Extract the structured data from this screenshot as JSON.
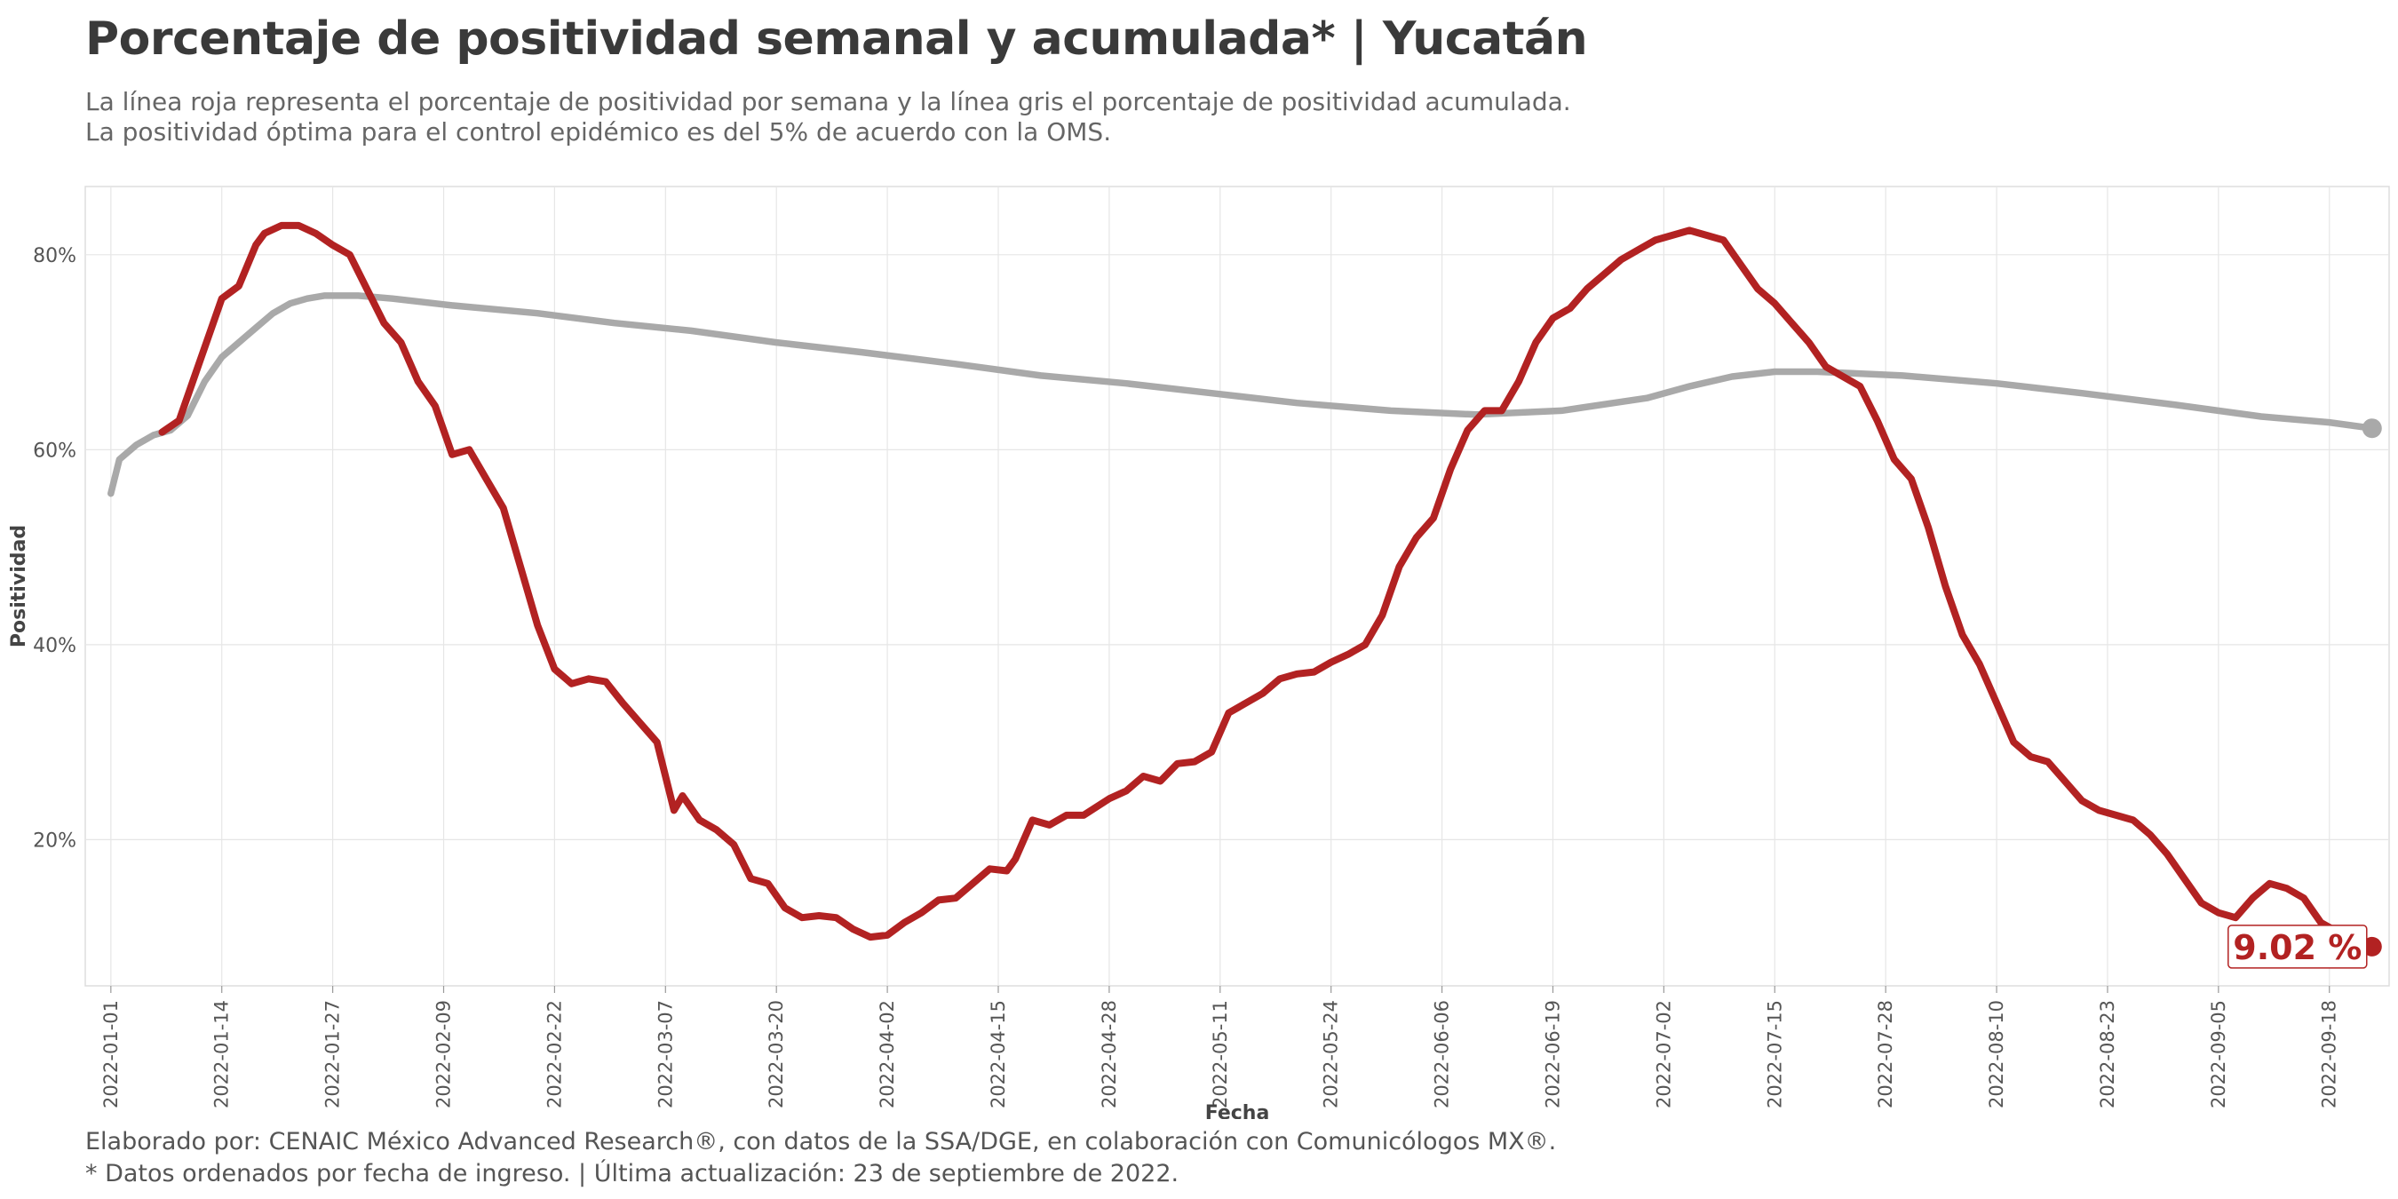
{
  "header": {
    "title": "Porcentaje de positividad semanal y acumulada* | Yucatán",
    "subtitle_line1": "La línea roja representa el porcentaje de positividad por semana y la línea gris el porcentaje de positividad acumulada.",
    "subtitle_line2": "La positividad óptima para el control epidémico es del 5% de acuerdo con la OMS."
  },
  "footer": {
    "caption_line1": "Elaborado por: CENAIC México Advanced Research®, con datos de la SSA/DGE, en colaboración con Comunicólogos MX®.",
    "caption_line2": "* Datos ordenados por fecha de ingreso. | Última actualización: 23 de septiembre de 2022."
  },
  "colors": {
    "weekly": "#b22222",
    "cumulative": "#a9a9a9",
    "grid": "#e6e6e6",
    "panel_border": "#dddddd"
  },
  "chart_data": {
    "type": "line",
    "xlabel": "Fecha",
    "ylabel": "Positividad",
    "x_range": [
      "2021-12-29",
      "2022-09-25"
    ],
    "ylim": [
      5,
      87
    ],
    "x_ticks": [
      "2022-01-01",
      "2022-01-14",
      "2022-01-27",
      "2022-02-09",
      "2022-02-22",
      "2022-03-07",
      "2022-03-20",
      "2022-04-02",
      "2022-04-15",
      "2022-04-28",
      "2022-05-11",
      "2022-05-24",
      "2022-06-06",
      "2022-06-19",
      "2022-07-02",
      "2022-07-15",
      "2022-07-28",
      "2022-08-10",
      "2022-08-23",
      "2022-09-05",
      "2022-09-18"
    ],
    "y_ticks": [
      20,
      40,
      60,
      80
    ],
    "y_tick_labels": [
      "20%",
      "40%",
      "60%",
      "80%"
    ],
    "grid": true,
    "end_label": "9.02 %",
    "series": [
      {
        "role": "weekly",
        "points": [
          [
            "2022-01-07",
            61.8
          ],
          [
            "2022-01-09",
            63
          ],
          [
            "2022-01-11",
            68
          ],
          [
            "2022-01-13",
            73
          ],
          [
            "2022-01-14",
            75.5
          ],
          [
            "2022-01-16",
            76.8
          ],
          [
            "2022-01-18",
            81
          ],
          [
            "2022-01-19",
            82.2
          ],
          [
            "2022-01-21",
            83
          ],
          [
            "2022-01-23",
            83
          ],
          [
            "2022-01-25",
            82.2
          ],
          [
            "2022-01-27",
            81
          ],
          [
            "2022-01-29",
            80
          ],
          [
            "2022-01-31",
            76.5
          ],
          [
            "2022-02-02",
            73
          ],
          [
            "2022-02-04",
            71
          ],
          [
            "2022-02-06",
            67
          ],
          [
            "2022-02-08",
            64.5
          ],
          [
            "2022-02-10",
            59.5
          ],
          [
            "2022-02-12",
            60
          ],
          [
            "2022-02-14",
            57
          ],
          [
            "2022-02-16",
            54
          ],
          [
            "2022-02-18",
            48
          ],
          [
            "2022-02-20",
            42
          ],
          [
            "2022-02-22",
            37.5
          ],
          [
            "2022-02-24",
            36
          ],
          [
            "2022-02-26",
            36.5
          ],
          [
            "2022-02-28",
            36.2
          ],
          [
            "2022-03-02",
            34
          ],
          [
            "2022-03-04",
            32
          ],
          [
            "2022-03-06",
            30
          ],
          [
            "2022-03-08",
            23
          ],
          [
            "2022-03-09",
            24.5
          ],
          [
            "2022-03-11",
            22
          ],
          [
            "2022-03-13",
            21
          ],
          [
            "2022-03-15",
            19.5
          ],
          [
            "2022-03-17",
            16
          ],
          [
            "2022-03-19",
            15.5
          ],
          [
            "2022-03-21",
            13
          ],
          [
            "2022-03-23",
            12
          ],
          [
            "2022-03-25",
            12.2
          ],
          [
            "2022-03-27",
            12
          ],
          [
            "2022-03-29",
            10.8
          ],
          [
            "2022-03-31",
            10
          ],
          [
            "2022-04-02",
            10.2
          ],
          [
            "2022-04-04",
            11.5
          ],
          [
            "2022-04-06",
            12.5
          ],
          [
            "2022-04-08",
            13.8
          ],
          [
            "2022-04-10",
            14
          ],
          [
            "2022-04-12",
            15.5
          ],
          [
            "2022-04-14",
            17
          ],
          [
            "2022-04-16",
            16.8
          ],
          [
            "2022-04-17",
            18
          ],
          [
            "2022-04-19",
            22
          ],
          [
            "2022-04-21",
            21.5
          ],
          [
            "2022-04-23",
            22.5
          ],
          [
            "2022-04-25",
            22.5
          ],
          [
            "2022-04-28",
            24.2
          ],
          [
            "2022-04-30",
            25
          ],
          [
            "2022-05-02",
            26.5
          ],
          [
            "2022-05-04",
            26
          ],
          [
            "2022-05-06",
            27.8
          ],
          [
            "2022-05-08",
            28
          ],
          [
            "2022-05-10",
            29
          ],
          [
            "2022-05-12",
            33
          ],
          [
            "2022-05-14",
            34
          ],
          [
            "2022-05-16",
            35
          ],
          [
            "2022-05-18",
            36.5
          ],
          [
            "2022-05-20",
            37
          ],
          [
            "2022-05-22",
            37.2
          ],
          [
            "2022-05-24",
            38.2
          ],
          [
            "2022-05-26",
            39
          ],
          [
            "2022-05-28",
            40
          ],
          [
            "2022-05-30",
            43
          ],
          [
            "2022-06-01",
            48
          ],
          [
            "2022-06-03",
            51
          ],
          [
            "2022-06-05",
            53
          ],
          [
            "2022-06-07",
            58
          ],
          [
            "2022-06-09",
            62
          ],
          [
            "2022-06-11",
            64
          ],
          [
            "2022-06-13",
            64
          ],
          [
            "2022-06-15",
            67
          ],
          [
            "2022-06-17",
            71
          ],
          [
            "2022-06-19",
            73.5
          ],
          [
            "2022-06-21",
            74.5
          ],
          [
            "2022-06-23",
            76.5
          ],
          [
            "2022-06-25",
            78
          ],
          [
            "2022-06-27",
            79.5
          ],
          [
            "2022-06-29",
            80.5
          ],
          [
            "2022-07-01",
            81.5
          ],
          [
            "2022-07-03",
            82
          ],
          [
            "2022-07-05",
            82.5
          ],
          [
            "2022-07-07",
            82
          ],
          [
            "2022-07-09",
            81.5
          ],
          [
            "2022-07-11",
            79
          ],
          [
            "2022-07-13",
            76.5
          ],
          [
            "2022-07-15",
            75
          ],
          [
            "2022-07-17",
            73
          ],
          [
            "2022-07-19",
            71
          ],
          [
            "2022-07-21",
            68.5
          ],
          [
            "2022-07-23",
            67.5
          ],
          [
            "2022-07-25",
            66.5
          ],
          [
            "2022-07-27",
            63
          ],
          [
            "2022-07-29",
            59
          ],
          [
            "2022-07-31",
            57
          ],
          [
            "2022-08-02",
            52
          ],
          [
            "2022-08-04",
            46
          ],
          [
            "2022-08-06",
            41
          ],
          [
            "2022-08-08",
            38
          ],
          [
            "2022-08-10",
            34
          ],
          [
            "2022-08-12",
            30
          ],
          [
            "2022-08-14",
            28.5
          ],
          [
            "2022-08-16",
            28
          ],
          [
            "2022-08-18",
            26
          ],
          [
            "2022-08-20",
            24
          ],
          [
            "2022-08-22",
            23
          ],
          [
            "2022-08-24",
            22.5
          ],
          [
            "2022-08-26",
            22
          ],
          [
            "2022-08-28",
            20.5
          ],
          [
            "2022-08-30",
            18.5
          ],
          [
            "2022-09-01",
            16
          ],
          [
            "2022-09-03",
            13.5
          ],
          [
            "2022-09-05",
            12.5
          ],
          [
            "2022-09-07",
            12
          ],
          [
            "2022-09-09",
            14
          ],
          [
            "2022-09-11",
            15.5
          ],
          [
            "2022-09-13",
            15
          ],
          [
            "2022-09-15",
            14
          ],
          [
            "2022-09-17",
            11.5
          ],
          [
            "2022-09-19",
            10.5
          ],
          [
            "2022-09-21",
            10
          ],
          [
            "2022-09-23",
            9.02
          ]
        ]
      },
      {
        "role": "cumulative",
        "points": [
          [
            "2022-01-01",
            55.5
          ],
          [
            "2022-01-02",
            59
          ],
          [
            "2022-01-04",
            60.5
          ],
          [
            "2022-01-06",
            61.5
          ],
          [
            "2022-01-08",
            62
          ],
          [
            "2022-01-10",
            63.5
          ],
          [
            "2022-01-12",
            67
          ],
          [
            "2022-01-14",
            69.5
          ],
          [
            "2022-01-16",
            71
          ],
          [
            "2022-01-18",
            72.5
          ],
          [
            "2022-01-20",
            74
          ],
          [
            "2022-01-22",
            75
          ],
          [
            "2022-01-24",
            75.5
          ],
          [
            "2022-01-26",
            75.8
          ],
          [
            "2022-01-30",
            75.8
          ],
          [
            "2022-02-03",
            75.5
          ],
          [
            "2022-02-10",
            74.8
          ],
          [
            "2022-02-20",
            74
          ],
          [
            "2022-03-01",
            73
          ],
          [
            "2022-03-10",
            72.2
          ],
          [
            "2022-03-20",
            71
          ],
          [
            "2022-03-30",
            70
          ],
          [
            "2022-04-10",
            68.8
          ],
          [
            "2022-04-20",
            67.6
          ],
          [
            "2022-04-30",
            66.8
          ],
          [
            "2022-05-10",
            65.8
          ],
          [
            "2022-05-20",
            64.8
          ],
          [
            "2022-05-31",
            64
          ],
          [
            "2022-06-10",
            63.6
          ],
          [
            "2022-06-20",
            64
          ],
          [
            "2022-06-30",
            65.3
          ],
          [
            "2022-07-05",
            66.5
          ],
          [
            "2022-07-10",
            67.5
          ],
          [
            "2022-07-15",
            68
          ],
          [
            "2022-07-20",
            68
          ],
          [
            "2022-07-30",
            67.6
          ],
          [
            "2022-08-10",
            66.8
          ],
          [
            "2022-08-20",
            65.8
          ],
          [
            "2022-08-31",
            64.6
          ],
          [
            "2022-09-10",
            63.4
          ],
          [
            "2022-09-18",
            62.8
          ],
          [
            "2022-09-23",
            62.2
          ]
        ]
      }
    ]
  }
}
